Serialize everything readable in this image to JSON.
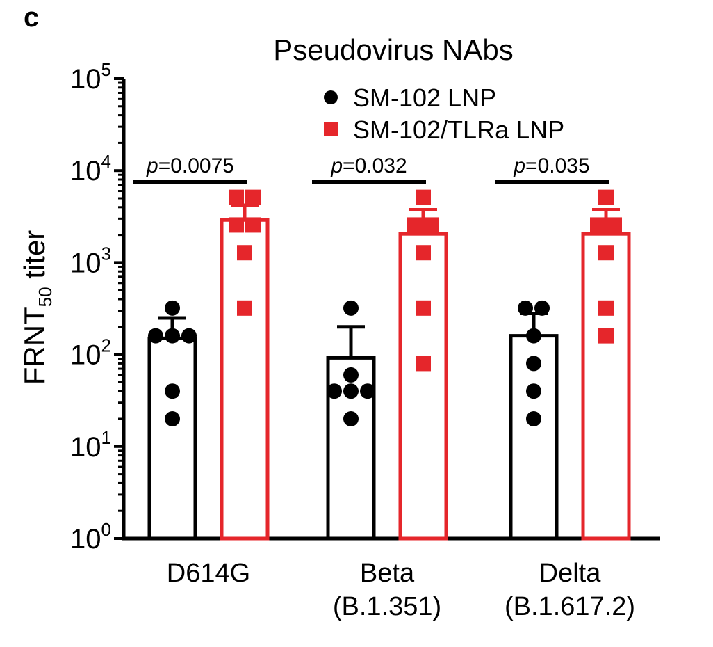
{
  "panel_label": "c",
  "chart_data": {
    "type": "bar",
    "title": "Pseudovirus NAbs",
    "ylabel": {
      "main": "FRNT",
      "sub": "50",
      "rest": " titer"
    },
    "yscale": "log",
    "ylim": [
      1,
      100000
    ],
    "yticks": [
      {
        "base": "10",
        "exp": "0",
        "value": 1
      },
      {
        "base": "10",
        "exp": "1",
        "value": 10
      },
      {
        "base": "10",
        "exp": "2",
        "value": 100
      },
      {
        "base": "10",
        "exp": "3",
        "value": 1000
      },
      {
        "base": "10",
        "exp": "4",
        "value": 10000
      },
      {
        "base": "10",
        "exp": "5",
        "value": 100000
      }
    ],
    "categories": [
      {
        "line1": "D614G",
        "line2": ""
      },
      {
        "line1": "Beta",
        "line2": "(B.1.351)"
      },
      {
        "line1": "Delta",
        "line2": "(B.1.617.2)"
      }
    ],
    "legend_position": "top-right",
    "series": [
      {
        "name": "SM-102 LNP",
        "color": "#000000",
        "marker": "circle",
        "bar_values": [
          150,
          92,
          160
        ],
        "error_upper": [
          250,
          200,
          280
        ],
        "points": [
          [
            320,
            160,
            160,
            160,
            40,
            20
          ],
          [
            320,
            60,
            40,
            40,
            40,
            20
          ],
          [
            320,
            320,
            160,
            80,
            40,
            20
          ]
        ]
      },
      {
        "name": "SM-102/TLRa LNP",
        "color": "#e5262b",
        "marker": "square",
        "bar_values": [
          2900,
          2050,
          2050
        ],
        "error_upper": [
          4200,
          3750,
          3750
        ],
        "points": [
          [
            5120,
            5120,
            2560,
            2560,
            1280,
            320
          ],
          [
            5120,
            2560,
            2560,
            1280,
            320,
            80
          ],
          [
            5120,
            2560,
            2560,
            1280,
            320,
            160
          ]
        ]
      }
    ],
    "annotations": [
      {
        "category": 0,
        "text_italic": "p",
        "text_rest": "=0.0075"
      },
      {
        "category": 1,
        "text_italic": "p",
        "text_rest": "=0.032"
      },
      {
        "category": 2,
        "text_italic": "p",
        "text_rest": "=0.035"
      }
    ]
  }
}
